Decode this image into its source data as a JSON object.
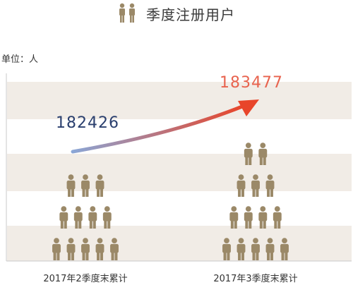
{
  "header": {
    "title": "季度注册用户",
    "icon": "people-icon"
  },
  "chart_data": {
    "type": "bar",
    "title": "季度注册用户",
    "unit_label": "单位：人",
    "categories": [
      "2017年2季度末累计",
      "2017年3季度末累计"
    ],
    "values": [
      182426,
      183477
    ],
    "value_labels": [
      "182426",
      "183477"
    ],
    "grid": "horizontal bands",
    "colors": {
      "figure": "#9b8968",
      "band": "#f1ece6",
      "label_start": "#2a3f6e",
      "label_end": "#e8634e",
      "arrow_start": "#8aa6d6",
      "arrow_end": "#e8452a"
    }
  }
}
